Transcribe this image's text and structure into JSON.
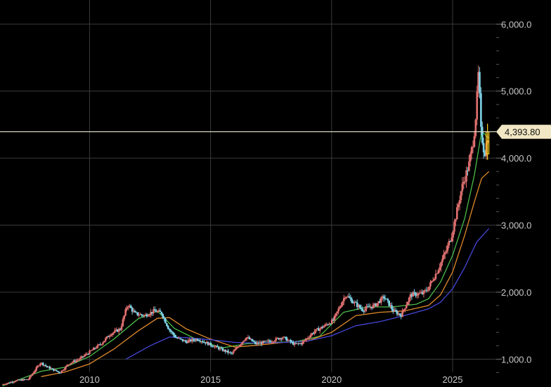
{
  "chart_data": {
    "type": "line",
    "title": "",
    "xlabel": "",
    "ylabel": "",
    "x_range": [
      2006.3,
      2026.8
    ],
    "ylim": [
      700,
      6150
    ],
    "x_ticks": [
      {
        "value": 2010,
        "label": "2010"
      },
      {
        "value": 2015,
        "label": "2015"
      },
      {
        "value": 2020,
        "label": "2020"
      },
      {
        "value": 2025,
        "label": "2025"
      }
    ],
    "y_ticks": [
      {
        "value": 1000,
        "label": "1,000.0"
      },
      {
        "value": 2000,
        "label": "2,000.0"
      },
      {
        "value": 3000,
        "label": "3,000.0"
      },
      {
        "value": 4000,
        "label": "4,000.0"
      },
      {
        "value": 5000,
        "label": "5,000.0"
      },
      {
        "value": 6000,
        "label": "6,000.0"
      }
    ],
    "last_price": {
      "value": 4393.8,
      "label": "4,393.80"
    },
    "grid": true,
    "colors": {
      "background": "#000000",
      "grid": "#3a3a3a",
      "up_candle": "#e07070",
      "down_candle": "#7fd3e8",
      "ma_short": "#4cbb4c",
      "ma_mid": "#e08a2a",
      "ma_long": "#4646d8",
      "price_line": "#e6e6c8",
      "price_tag": "#f2e7c4",
      "current_candle": "#ffd21a"
    },
    "series": [
      {
        "role": "price",
        "x": [
          2006.4,
          2007.0,
          2007.5,
          2008.0,
          2008.3,
          2008.8,
          2009.2,
          2009.6,
          2010.0,
          2010.5,
          2010.9,
          2011.3,
          2011.6,
          2011.9,
          2012.3,
          2012.7,
          2013.0,
          2013.3,
          2013.6,
          2014.0,
          2014.5,
          2015.0,
          2015.5,
          2015.9,
          2016.5,
          2016.9,
          2017.5,
          2018.0,
          2018.5,
          2018.8,
          2019.3,
          2019.7,
          2020.1,
          2020.6,
          2020.9,
          2021.3,
          2021.8,
          2022.2,
          2022.6,
          2022.9,
          2023.3,
          2023.8,
          2024.0,
          2024.4,
          2024.8,
          2025.0,
          2025.2,
          2025.4,
          2025.7,
          2025.9,
          2026.0,
          2026.1,
          2026.2,
          2026.35,
          2026.5
        ],
        "values": [
          620,
          680,
          700,
          950,
          880,
          800,
          940,
          1000,
          1100,
          1230,
          1380,
          1450,
          1820,
          1680,
          1650,
          1720,
          1690,
          1450,
          1320,
          1260,
          1300,
          1220,
          1140,
          1080,
          1330,
          1230,
          1270,
          1330,
          1220,
          1240,
          1410,
          1490,
          1580,
          1960,
          1860,
          1740,
          1800,
          1930,
          1710,
          1660,
          1960,
          1980,
          2050,
          2320,
          2650,
          2870,
          3200,
          3550,
          3900,
          4300,
          4700,
          5300,
          4400,
          4050,
          4393.8
        ]
      },
      {
        "role": "ma_short",
        "x": [
          2006.4,
          2008.0,
          2009.0,
          2010.0,
          2011.0,
          2012.0,
          2012.8,
          2013.5,
          2014.5,
          2015.5,
          2016.5,
          2017.5,
          2018.5,
          2019.5,
          2020.5,
          2021.5,
          2022.5,
          2023.5,
          2024.0,
          2024.5,
          2025.0,
          2025.5,
          2025.9,
          2026.2,
          2026.5
        ],
        "values": [
          600,
          820,
          880,
          1040,
          1300,
          1600,
          1720,
          1460,
          1280,
          1170,
          1230,
          1250,
          1260,
          1340,
          1700,
          1780,
          1780,
          1820,
          1900,
          2150,
          2550,
          3100,
          3750,
          4400,
          4300
        ]
      },
      {
        "role": "ma_mid",
        "x": [
          2008.0,
          2009.0,
          2010.0,
          2011.0,
          2012.0,
          2012.8,
          2013.3,
          2014.0,
          2015.0,
          2016.0,
          2017.0,
          2018.0,
          2019.0,
          2020.0,
          2021.0,
          2022.0,
          2023.0,
          2024.0,
          2024.5,
          2025.0,
          2025.5,
          2025.9,
          2026.2,
          2026.5
        ],
        "values": [
          740,
          810,
          930,
          1150,
          1420,
          1610,
          1620,
          1450,
          1300,
          1180,
          1210,
          1250,
          1270,
          1400,
          1650,
          1700,
          1720,
          1800,
          1960,
          2300,
          2850,
          3350,
          3700,
          3800
        ]
      },
      {
        "role": "ma_long",
        "x": [
          2011.5,
          2012.5,
          2013.3,
          2014.0,
          2015.0,
          2016.0,
          2017.0,
          2018.0,
          2019.0,
          2020.0,
          2021.0,
          2022.0,
          2023.0,
          2024.0,
          2024.5,
          2025.0,
          2025.5,
          2026.0,
          2026.5
        ],
        "values": [
          1000,
          1200,
          1330,
          1320,
          1290,
          1250,
          1240,
          1250,
          1270,
          1350,
          1500,
          1560,
          1650,
          1750,
          1850,
          2050,
          2370,
          2750,
          2950
        ]
      }
    ]
  }
}
